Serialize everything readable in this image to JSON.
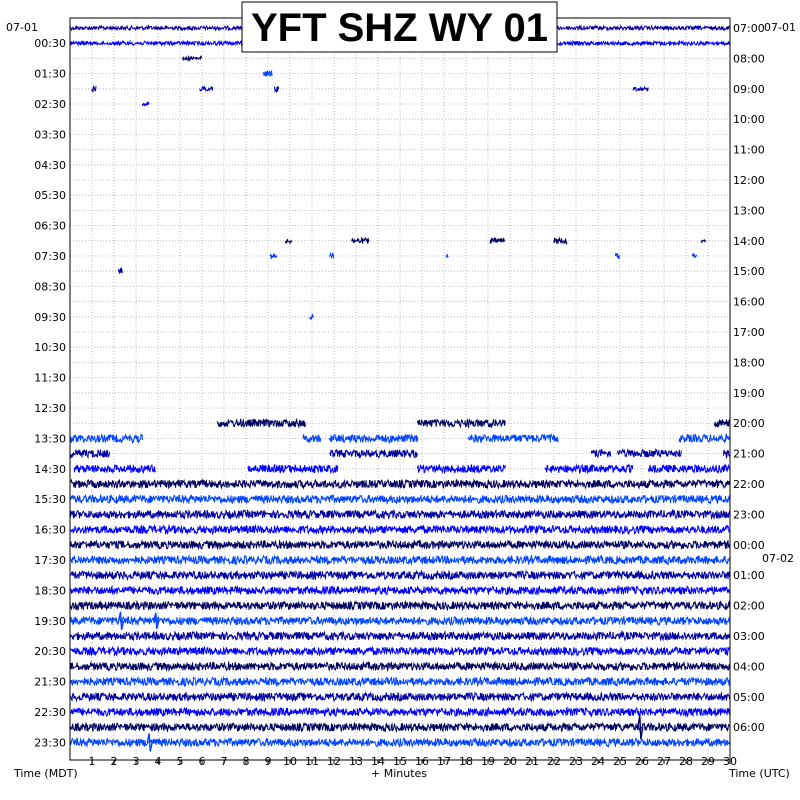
{
  "chart_data": {
    "type": "line",
    "title": "YFT SHZ WY 01",
    "date_left": "07-01",
    "date_right": "07-01",
    "date_right_next": "07-02",
    "xlabel": "+ Minutes",
    "xlabel_left": "Time (MDT)",
    "xlabel_right": "Time (UTC)",
    "x_ticks": [
      "1",
      "2",
      "3",
      "4",
      "5",
      "6",
      "7",
      "8",
      "9",
      "10",
      "11",
      "12",
      "13",
      "14",
      "15",
      "16",
      "17",
      "18",
      "19",
      "20",
      "21",
      "22",
      "23",
      "24",
      "25",
      "26",
      "27",
      "28",
      "29",
      "30"
    ],
    "xlim": [
      0,
      30
    ],
    "left_labels": [
      "00:30",
      "01:30",
      "02:30",
      "03:30",
      "04:30",
      "05:30",
      "06:30",
      "07:30",
      "08:30",
      "09:30",
      "10:30",
      "11:30",
      "12:30",
      "13:30",
      "14:30",
      "15:30",
      "16:30",
      "17:30",
      "18:30",
      "19:30",
      "20:30",
      "21:30",
      "22:30",
      "23:30"
    ],
    "right_labels": [
      "07:00",
      "08:00",
      "09:00",
      "10:00",
      "11:00",
      "12:00",
      "13:00",
      "14:00",
      "15:00",
      "16:00",
      "17:00",
      "18:00",
      "19:00",
      "20:00",
      "21:00",
      "22:00",
      "23:00",
      "00:00",
      "01:00",
      "02:00",
      "03:00",
      "04:00",
      "05:00",
      "06:00"
    ],
    "trace_colors": [
      "#0000a0",
      "#0000ff",
      "#000060",
      "#0044ff"
    ],
    "grid": true,
    "rows": 48,
    "segments": [
      [
        {
          "s": 0,
          "e": 30,
          "a": 2
        }
      ],
      [
        {
          "s": 0,
          "e": 30,
          "a": 2
        }
      ],
      [
        {
          "s": 5.1,
          "e": 6,
          "a": 2
        }
      ],
      [
        {
          "s": 8.8,
          "e": 9.2,
          "a": 3
        }
      ],
      [
        {
          "s": 1,
          "e": 1.2,
          "a": 3
        },
        {
          "s": 5.9,
          "e": 6.5,
          "a": 2
        },
        {
          "s": 9.3,
          "e": 9.5,
          "a": 3
        },
        {
          "s": 25.6,
          "e": 26.3,
          "a": 2
        }
      ],
      [
        {
          "s": 3.3,
          "e": 3.6,
          "a": 2
        }
      ],
      [],
      [],
      [],
      [],
      [],
      [],
      [],
      [],
      [
        {
          "s": 9.8,
          "e": 10.1,
          "a": 3
        },
        {
          "s": 12.8,
          "e": 13.6,
          "a": 3
        },
        {
          "s": 19.1,
          "e": 19.8,
          "a": 3
        },
        {
          "s": 22,
          "e": 22.6,
          "a": 3
        },
        {
          "s": 28.7,
          "e": 28.9,
          "a": 2
        }
      ],
      [
        {
          "s": 9.1,
          "e": 9.4,
          "a": 3
        },
        {
          "s": 11.8,
          "e": 12,
          "a": 3
        },
        {
          "s": 17.1,
          "e": 17.2,
          "a": 2
        },
        {
          "s": 24.8,
          "e": 25,
          "a": 3
        },
        {
          "s": 28.3,
          "e": 28.5,
          "a": 3
        }
      ],
      [
        {
          "s": 2.2,
          "e": 2.4,
          "a": 3
        }
      ],
      [],
      [],
      [
        {
          "s": 10.9,
          "e": 11.1,
          "a": 3
        }
      ],
      [],
      [],
      [],
      [],
      [],
      [],
      [
        {
          "s": 6.7,
          "e": 10.7,
          "a": 4
        },
        {
          "s": 15.8,
          "e": 19.8,
          "a": 4
        },
        {
          "s": 29.3,
          "e": 30,
          "a": 4
        }
      ],
      [
        {
          "s": 0,
          "e": 3.3,
          "a": 4
        },
        {
          "s": 10.6,
          "e": 11.4,
          "a": 4
        },
        {
          "s": 11.8,
          "e": 15.8,
          "a": 4
        },
        {
          "s": 18.1,
          "e": 22.2,
          "a": 4
        },
        {
          "s": 27.7,
          "e": 30,
          "a": 4
        }
      ],
      [
        {
          "s": 0,
          "e": 1.8,
          "a": 4
        },
        {
          "s": 11.8,
          "e": 15.8,
          "a": 4
        },
        {
          "s": 23.7,
          "e": 24.6,
          "a": 4
        },
        {
          "s": 24.9,
          "e": 27.8,
          "a": 4
        },
        {
          "s": 29.7,
          "e": 30,
          "a": 4
        }
      ],
      [
        {
          "s": 0.2,
          "e": 3.9,
          "a": 4
        },
        {
          "s": 8.1,
          "e": 12.2,
          "a": 4
        },
        {
          "s": 15.8,
          "e": 19.8,
          "a": 4
        },
        {
          "s": 21.6,
          "e": 25.6,
          "a": 4
        },
        {
          "s": 26.3,
          "e": 30,
          "a": 4
        }
      ],
      [
        {
          "s": 0,
          "e": 30,
          "a": 4
        }
      ],
      [
        {
          "s": 0,
          "e": 30,
          "a": 4
        }
      ],
      [
        {
          "s": 0,
          "e": 30,
          "a": 4
        }
      ],
      [
        {
          "s": 0,
          "e": 30,
          "a": 4
        }
      ],
      [
        {
          "s": 0,
          "e": 30,
          "a": 4
        }
      ],
      [
        {
          "s": 0,
          "e": 30,
          "a": 4
        }
      ],
      [
        {
          "s": 0,
          "e": 30,
          "a": 4
        }
      ],
      [
        {
          "s": 0,
          "e": 30,
          "a": 4
        }
      ],
      [
        {
          "s": 0,
          "e": 30,
          "a": 4
        }
      ],
      [
        {
          "s": 0,
          "e": 30,
          "a": 4
        }
      ],
      [
        {
          "s": 0,
          "e": 30,
          "a": 4
        }
      ],
      [
        {
          "s": 0,
          "e": 30,
          "a": 4
        }
      ],
      [
        {
          "s": 0,
          "e": 30,
          "a": 4
        }
      ],
      [
        {
          "s": 0,
          "e": 30,
          "a": 4
        }
      ],
      [
        {
          "s": 0,
          "e": 30,
          "a": 4
        }
      ],
      [
        {
          "s": 0,
          "e": 30,
          "a": 4
        }
      ],
      [
        {
          "s": 0,
          "e": 30,
          "a": 4
        }
      ],
      [
        {
          "s": 0,
          "e": 30,
          "a": 4
        }
      ]
    ],
    "spikes": [
      {
        "row": 39,
        "x": 2.3,
        "a": 9
      },
      {
        "row": 39,
        "x": 3.9,
        "a": 8
      },
      {
        "row": 46,
        "x": 25.9,
        "a": 12
      },
      {
        "row": 47,
        "x": 3.6,
        "a": 9
      }
    ]
  }
}
